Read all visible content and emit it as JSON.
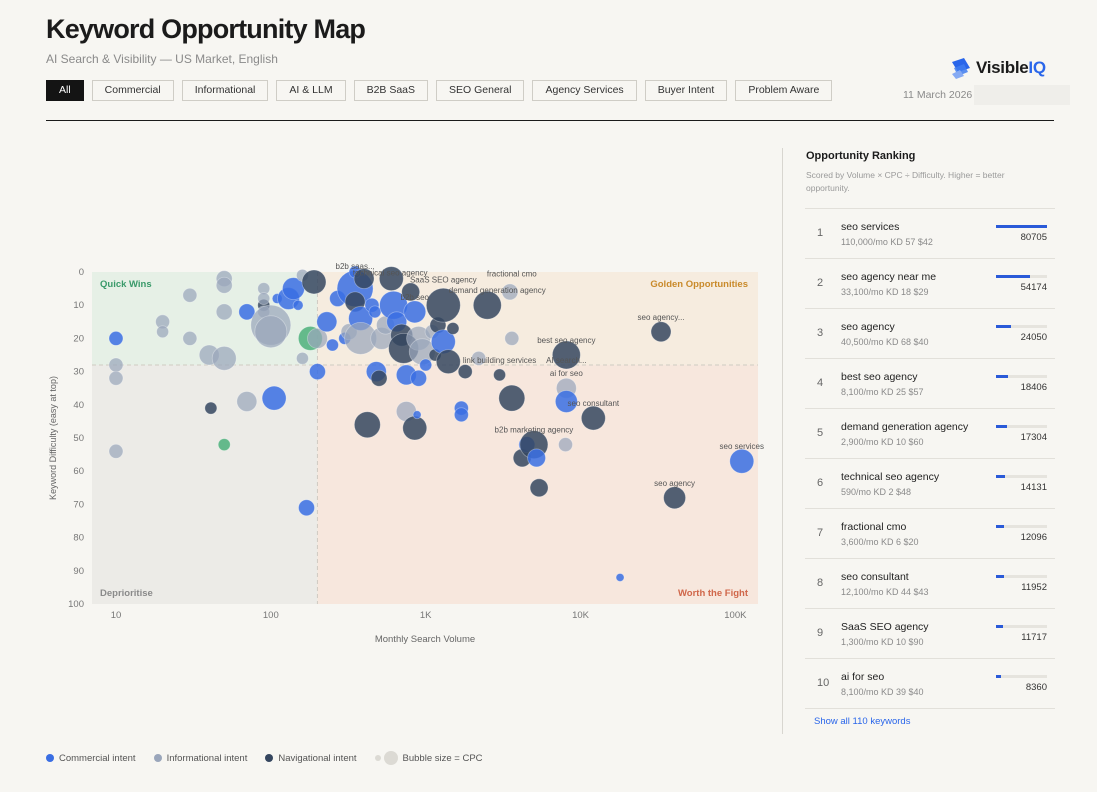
{
  "header": {
    "title": "Keyword Opportunity Map",
    "subtitle": "AI Search & Visibility — US Market, English",
    "date": "11 March 2026"
  },
  "brand": {
    "name_a": "Visible",
    "name_b": "IQ",
    "logo_icon": "stacked-chevron-logo-icon"
  },
  "filters": [
    {
      "label": "All",
      "active": true
    },
    {
      "label": "Commercial"
    },
    {
      "label": "Informational"
    },
    {
      "label": "AI & LLM"
    },
    {
      "label": "B2B SaaS"
    },
    {
      "label": "SEO General"
    },
    {
      "label": "Agency Services"
    },
    {
      "label": "Buyer Intent"
    },
    {
      "label": "Problem Aware"
    }
  ],
  "colors": {
    "commercial": "#3a6ee3",
    "informational": "#9aa6bb",
    "navigational": "#35465f",
    "highlight": "#4cb07a",
    "quick_wins_bg": "#e6f0e6",
    "golden_bg": "#f6ecdf",
    "fight_bg": "#f7e7dd",
    "deprioritise_bg": "#ecebe7"
  },
  "chart_data": {
    "type": "scatter",
    "x_scale": "log",
    "xlabel": "Monthly Search Volume",
    "ylabel": "Keyword Difficulty (easy at top)",
    "xlim": [
      7,
      140000
    ],
    "ylim": [
      0,
      100
    ],
    "y_inverted": true,
    "x_ticks": [
      {
        "v": 10,
        "label": "10"
      },
      {
        "v": 100,
        "label": "100"
      },
      {
        "v": 1000,
        "label": "1K"
      },
      {
        "v": 10000,
        "label": "10K"
      },
      {
        "v": 100000,
        "label": "100K"
      }
    ],
    "y_ticks": [
      0,
      10,
      20,
      30,
      40,
      50,
      60,
      70,
      80,
      90,
      100
    ],
    "threshold_x": 200,
    "threshold_y": 28,
    "quadrants": [
      {
        "label": "Quick Wins",
        "pos": "top-left"
      },
      {
        "label": "Golden Opportunities",
        "pos": "top-right"
      },
      {
        "label": "Deprioritise",
        "pos": "bottom-left"
      },
      {
        "label": "Worth the Fight",
        "pos": "bottom-right"
      }
    ],
    "points": [
      {
        "v": 10,
        "d": 20,
        "c": "C",
        "s": 7
      },
      {
        "v": 10,
        "d": 28,
        "c": "I",
        "s": 7
      },
      {
        "v": 10,
        "d": 32,
        "c": "I",
        "s": 7
      },
      {
        "v": 10,
        "d": 54,
        "c": "I",
        "s": 7
      },
      {
        "v": 20,
        "d": 15,
        "c": "I",
        "s": 7
      },
      {
        "v": 20,
        "d": 18,
        "c": "I",
        "s": 6
      },
      {
        "v": 30,
        "d": 20,
        "c": "I",
        "s": 7
      },
      {
        "v": 30,
        "d": 7,
        "c": "I",
        "s": 7
      },
      {
        "v": 40,
        "d": 25,
        "c": "I",
        "s": 10
      },
      {
        "v": 41,
        "d": 41,
        "c": "N",
        "s": 6
      },
      {
        "v": 50,
        "d": 2,
        "c": "I",
        "s": 8
      },
      {
        "v": 50,
        "d": 4,
        "c": "I",
        "s": 8
      },
      {
        "v": 50,
        "d": 12,
        "c": "I",
        "s": 8
      },
      {
        "v": 50,
        "d": 26,
        "c": "I",
        "s": 12
      },
      {
        "v": 50,
        "d": 52,
        "c": "G",
        "s": 6
      },
      {
        "v": 70,
        "d": 39,
        "c": "I",
        "s": 10
      },
      {
        "v": 70,
        "d": 12,
        "c": "C",
        "s": 8
      },
      {
        "v": 90,
        "d": 10,
        "c": "N",
        "s": 6
      },
      {
        "v": 90,
        "d": 5,
        "c": "I",
        "s": 6
      },
      {
        "v": 90,
        "d": 8,
        "c": "I",
        "s": 6
      },
      {
        "v": 90,
        "d": 12,
        "c": "I",
        "s": 6
      },
      {
        "v": 100,
        "d": 16,
        "c": "I",
        "s": 20
      },
      {
        "v": 100,
        "d": 18,
        "c": "I",
        "s": 16
      },
      {
        "v": 105,
        "d": 38,
        "c": "C",
        "s": 12
      },
      {
        "v": 110,
        "d": 8,
        "c": "C",
        "s": 5
      },
      {
        "v": 130,
        "d": 8,
        "c": "C",
        "s": 11
      },
      {
        "v": 140,
        "d": 5,
        "c": "C",
        "s": 11
      },
      {
        "v": 150,
        "d": 10,
        "c": "C",
        "s": 5
      },
      {
        "v": 160,
        "d": 1,
        "c": "I",
        "s": 6
      },
      {
        "v": 160,
        "d": 26,
        "c": "I",
        "s": 6
      },
      {
        "v": 170,
        "d": 71,
        "c": "C",
        "s": 8
      },
      {
        "v": 180,
        "d": 20,
        "c": "G",
        "s": 12
      },
      {
        "v": 190,
        "d": 3,
        "c": "N",
        "s": 12
      },
      {
        "v": 200,
        "d": 20,
        "c": "I",
        "s": 10
      },
      {
        "v": 200,
        "d": 30,
        "c": "C",
        "s": 8
      },
      {
        "v": 230,
        "d": 15,
        "c": "C",
        "s": 10
      },
      {
        "v": 250,
        "d": 22,
        "c": "C",
        "s": 6
      },
      {
        "v": 270,
        "d": 8,
        "c": "C",
        "s": 8
      },
      {
        "v": 300,
        "d": 20,
        "c": "C",
        "s": 6
      },
      {
        "v": 320,
        "d": 18,
        "c": "I",
        "s": 8
      },
      {
        "v": 350,
        "d": 5,
        "c": "C",
        "s": 18
      },
      {
        "v": 350,
        "d": 0,
        "c": "C",
        "s": 6
      },
      {
        "v": 350,
        "d": 9,
        "c": "N",
        "s": 10
      },
      {
        "v": 380,
        "d": 14,
        "c": "C",
        "s": 12
      },
      {
        "v": 380,
        "d": 20,
        "c": "I",
        "s": 16
      },
      {
        "v": 400,
        "d": 2,
        "c": "N",
        "s": 10
      },
      {
        "v": 420,
        "d": 46,
        "c": "N",
        "s": 13
      },
      {
        "v": 450,
        "d": 10,
        "c": "C",
        "s": 7
      },
      {
        "v": 470,
        "d": 12,
        "c": "C",
        "s": 6
      },
      {
        "v": 480,
        "d": 30,
        "c": "C",
        "s": 10
      },
      {
        "v": 500,
        "d": 32,
        "c": "N",
        "s": 8
      },
      {
        "v": 520,
        "d": 20,
        "c": "I",
        "s": 11
      },
      {
        "v": 550,
        "d": 16,
        "c": "I",
        "s": 9
      },
      {
        "v": 600,
        "d": 2,
        "c": "N",
        "s": 12
      },
      {
        "v": 620,
        "d": 10,
        "c": "C",
        "s": 14
      },
      {
        "v": 650,
        "d": 15,
        "c": "C",
        "s": 10
      },
      {
        "v": 700,
        "d": 19,
        "c": "N",
        "s": 11
      },
      {
        "v": 720,
        "d": 23,
        "c": "N",
        "s": 15
      },
      {
        "v": 750,
        "d": 42,
        "c": "I",
        "s": 10
      },
      {
        "v": 750,
        "d": 31,
        "c": "C",
        "s": 10
      },
      {
        "v": 800,
        "d": 6,
        "c": "N",
        "s": 9
      },
      {
        "v": 850,
        "d": 12,
        "c": "C",
        "s": 11
      },
      {
        "v": 850,
        "d": 47,
        "c": "N",
        "s": 12
      },
      {
        "v": 880,
        "d": 43,
        "c": "C",
        "s": 4
      },
      {
        "v": 900,
        "d": 20,
        "c": "I",
        "s": 12
      },
      {
        "v": 900,
        "d": 32,
        "c": "C",
        "s": 8
      },
      {
        "v": 950,
        "d": 24,
        "c": "I",
        "s": 13
      },
      {
        "v": 1000,
        "d": 28,
        "c": "C",
        "s": 6
      },
      {
        "v": 1100,
        "d": 18,
        "c": "I",
        "s": 7
      },
      {
        "v": 1150,
        "d": 25,
        "c": "N",
        "s": 6
      },
      {
        "v": 1200,
        "d": 16,
        "c": "N",
        "s": 8
      },
      {
        "v": 1300,
        "d": 10,
        "c": "N",
        "s": 17
      },
      {
        "v": 1300,
        "d": 21,
        "c": "C",
        "s": 12
      },
      {
        "v": 1400,
        "d": 27,
        "c": "N",
        "s": 12
      },
      {
        "v": 1500,
        "d": 17,
        "c": "N",
        "s": 6
      },
      {
        "v": 1700,
        "d": 41,
        "c": "C",
        "s": 7
      },
      {
        "v": 1700,
        "d": 43,
        "c": "C",
        "s": 7
      },
      {
        "v": 1800,
        "d": 30,
        "c": "N",
        "s": 7
      },
      {
        "v": 2200,
        "d": 26,
        "c": "I",
        "s": 7
      },
      {
        "v": 2500,
        "d": 10,
        "c": "N",
        "s": 14
      },
      {
        "v": 3000,
        "d": 31,
        "c": "N",
        "s": 6
      },
      {
        "v": 3500,
        "d": 6,
        "c": "I",
        "s": 8
      },
      {
        "v": 3600,
        "d": 20,
        "c": "I",
        "s": 7
      },
      {
        "v": 3600,
        "d": 38,
        "c": "N",
        "s": 13
      },
      {
        "v": 4200,
        "d": 56,
        "c": "N",
        "s": 9
      },
      {
        "v": 4500,
        "d": 52,
        "c": "C",
        "s": 8
      },
      {
        "v": 5000,
        "d": 52,
        "c": "N",
        "s": 14
      },
      {
        "v": 5200,
        "d": 56,
        "c": "C",
        "s": 9
      },
      {
        "v": 5400,
        "d": 65,
        "c": "N",
        "s": 9
      },
      {
        "v": 8000,
        "d": 52,
        "c": "I",
        "s": 7
      },
      {
        "v": 8100,
        "d": 25,
        "c": "N",
        "s": 14
      },
      {
        "v": 8100,
        "d": 35,
        "c": "I",
        "s": 10
      },
      {
        "v": 8100,
        "d": 39,
        "c": "C",
        "s": 11
      },
      {
        "v": 12100,
        "d": 44,
        "c": "N",
        "s": 12
      },
      {
        "v": 18000,
        "d": 92,
        "c": "C",
        "s": 4
      },
      {
        "v": 33100,
        "d": 18,
        "c": "N",
        "s": 10
      },
      {
        "v": 40500,
        "d": 68,
        "c": "N",
        "s": 11
      },
      {
        "v": 110000,
        "d": 57,
        "c": "C",
        "s": 12
      }
    ],
    "annotations": [
      {
        "text": "technical seo agency",
        "v": 590,
        "d": 2
      },
      {
        "text": "b2b saas...",
        "v": 350,
        "d": 0
      },
      {
        "text": "SaaS SEO agency",
        "v": 1300,
        "d": 4
      },
      {
        "text": "fractional cmo",
        "v": 3600,
        "d": 5
      },
      {
        "text": "demand generation agency",
        "v": 2900,
        "d": 10
      },
      {
        "text": "b2b seo",
        "v": 850,
        "d": 12
      },
      {
        "text": "best seo agency",
        "v": 8100,
        "d": 25
      },
      {
        "text": "seo agency...",
        "v": 33100,
        "d": 18
      },
      {
        "text": "link building services",
        "v": 3000,
        "d": 31
      },
      {
        "text": "AI search...",
        "v": 8100,
        "d": 31
      },
      {
        "text": "ai for seo",
        "v": 8100,
        "d": 35
      },
      {
        "text": "seo consultant",
        "v": 12100,
        "d": 44
      },
      {
        "text": "b2b marketing agency",
        "v": 5000,
        "d": 52
      },
      {
        "text": "seo services",
        "v": 110000,
        "d": 57
      },
      {
        "text": "seo agency",
        "v": 40500,
        "d": 68
      }
    ]
  },
  "ranking": {
    "title": "Opportunity Ranking",
    "subtitle": "Scored by Volume × CPC ÷ Difficulty. Higher = better opportunity.",
    "max_score": 80705,
    "items": [
      {
        "rank": "1",
        "keyword": "seo services",
        "meta": "110,000/mo   KD 57   $42",
        "score": 80705,
        "score_label": "80705"
      },
      {
        "rank": "2",
        "keyword": "seo agency near me",
        "meta": "33,100/mo   KD 18   $29",
        "score": 54174,
        "score_label": "54174"
      },
      {
        "rank": "3",
        "keyword": "seo agency",
        "meta": "40,500/mo   KD 68   $40",
        "score": 24050,
        "score_label": "24050"
      },
      {
        "rank": "4",
        "keyword": "best seo agency",
        "meta": "8,100/mo   KD 25   $57",
        "score": 18406,
        "score_label": "18406"
      },
      {
        "rank": "5",
        "keyword": "demand generation agency",
        "meta": "2,900/mo   KD 10   $60",
        "score": 17304,
        "score_label": "17304"
      },
      {
        "rank": "6",
        "keyword": "technical seo agency",
        "meta": "590/mo   KD 2   $48",
        "score": 14131,
        "score_label": "14131"
      },
      {
        "rank": "7",
        "keyword": "fractional cmo",
        "meta": "3,600/mo   KD 6   $20",
        "score": 12096,
        "score_label": "12096"
      },
      {
        "rank": "8",
        "keyword": "seo consultant",
        "meta": "12,100/mo   KD 44   $43",
        "score": 11952,
        "score_label": "11952"
      },
      {
        "rank": "9",
        "keyword": "SaaS SEO agency",
        "meta": "1,300/mo   KD 10   $90",
        "score": 11717,
        "score_label": "11717"
      },
      {
        "rank": "10",
        "keyword": "ai for seo",
        "meta": "8,100/mo   KD 39   $40",
        "score": 8360,
        "score_label": "8360"
      }
    ],
    "show_all": "Show all 110 keywords"
  },
  "legend": {
    "commercial": "Commercial intent",
    "informational": "Informational intent",
    "navigational": "Navigational intent",
    "size": "Bubble size = CPC"
  }
}
